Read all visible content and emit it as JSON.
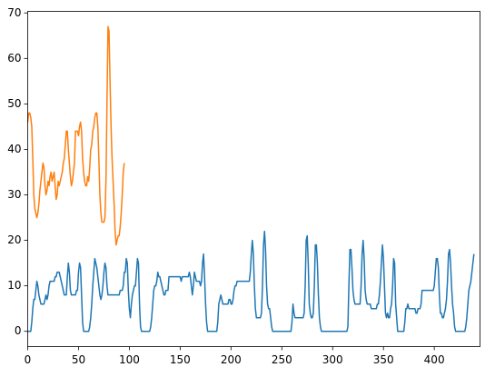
{
  "chart_data": {
    "type": "line",
    "xlim": [
      0,
      445
    ],
    "ylim": [
      -3.35,
      70.35
    ],
    "xticks": [
      0,
      50,
      100,
      150,
      200,
      250,
      300,
      350,
      400
    ],
    "yticks": [
      0,
      10,
      20,
      30,
      40,
      50,
      60,
      70
    ],
    "series": [
      {
        "color": "#1f77b4",
        "values": [
          0,
          0,
          0,
          0,
          2,
          5,
          7,
          7,
          9,
          11,
          10,
          8,
          7,
          6,
          6,
          6,
          6,
          7,
          8,
          7,
          8,
          10,
          11,
          11,
          11,
          11,
          11,
          12,
          12,
          13,
          13,
          13,
          12,
          11,
          10,
          9,
          8,
          8,
          8,
          12,
          15,
          13,
          9,
          8,
          8,
          8,
          8,
          8,
          9,
          9,
          13,
          15,
          14,
          8,
          2,
          0,
          0,
          0,
          0,
          0,
          0,
          1,
          3,
          6,
          10,
          13,
          16,
          15,
          14,
          12,
          10,
          8,
          7,
          8,
          10,
          13,
          15,
          14,
          10,
          8,
          8,
          8,
          8,
          8,
          8,
          8,
          8,
          8,
          8,
          8,
          8,
          9,
          9,
          9,
          10,
          13,
          13,
          16,
          15,
          9,
          5,
          3,
          6,
          8,
          9,
          10,
          10,
          13,
          16,
          15,
          6,
          1,
          0,
          0,
          0,
          0,
          0,
          0,
          0,
          0,
          0,
          1,
          3,
          6,
          9,
          10,
          10,
          11,
          13,
          12,
          12,
          11,
          10,
          9,
          8,
          8,
          9,
          9,
          9,
          12,
          12,
          12,
          12,
          12,
          12,
          12,
          12,
          12,
          12,
          12,
          12,
          11,
          12,
          12,
          12,
          12,
          12,
          12,
          12,
          13,
          12,
          10,
          8,
          10,
          13,
          12,
          11,
          11,
          11,
          11,
          10,
          11,
          15,
          17,
          12,
          6,
          2,
          0,
          0,
          0,
          0,
          0,
          0,
          0,
          0,
          0,
          0,
          2,
          6,
          7,
          8,
          7,
          6,
          6,
          6,
          6,
          6,
          6,
          7,
          7,
          6,
          6,
          7,
          9,
          10,
          10,
          11,
          11,
          11,
          11,
          11,
          11,
          11,
          11,
          11,
          11,
          11,
          11,
          11,
          13,
          17,
          20,
          17,
          10,
          5,
          3,
          3,
          3,
          3,
          3,
          4,
          10,
          19,
          22,
          18,
          10,
          6,
          5,
          5,
          3,
          1,
          0,
          0,
          0,
          0,
          0,
          0,
          0,
          0,
          0,
          0,
          0,
          0,
          0,
          0,
          0,
          0,
          0,
          0,
          0,
          2,
          6,
          4,
          3,
          3,
          3,
          3,
          3,
          3,
          3,
          3,
          3,
          4,
          10,
          20,
          21,
          15,
          6,
          4,
          3,
          3,
          4,
          10,
          19,
          19,
          15,
          8,
          3,
          1,
          0,
          0,
          0,
          0,
          0,
          0,
          0,
          0,
          0,
          0,
          0,
          0,
          0,
          0,
          0,
          0,
          0,
          0,
          0,
          0,
          0,
          0,
          0,
          0,
          0,
          0,
          1,
          10,
          18,
          18,
          14,
          9,
          7,
          6,
          6,
          6,
          6,
          6,
          6,
          10,
          17,
          20,
          16,
          9,
          7,
          6,
          6,
          6,
          6,
          5,
          5,
          5,
          5,
          5,
          5,
          6,
          6,
          8,
          11,
          15,
          19,
          16,
          10,
          4,
          3,
          4,
          3,
          3,
          5,
          6,
          10,
          16,
          15,
          6,
          3,
          0,
          0,
          0,
          0,
          0,
          0,
          0,
          2,
          5,
          5,
          6,
          5,
          5,
          5,
          5,
          5,
          5,
          5,
          4,
          4,
          5,
          5,
          5,
          6,
          9,
          9,
          9,
          9,
          9,
          9,
          9,
          9,
          9,
          9,
          9,
          9,
          10,
          13,
          16,
          16,
          14,
          8,
          4,
          4,
          3,
          3,
          4,
          5,
          7,
          11,
          17,
          18,
          15,
          10,
          6,
          4,
          1,
          0,
          0,
          0,
          0,
          0,
          0,
          0,
          0,
          0,
          0,
          1,
          3,
          6,
          9,
          10,
          11,
          13,
          15,
          17
        ]
      },
      {
        "color": "#ff7f0e",
        "values": [
          46,
          48,
          48,
          47,
          45,
          38,
          30,
          27,
          26,
          25,
          26,
          28,
          31,
          33,
          35,
          37,
          36,
          32,
          30,
          31,
          33,
          32,
          34,
          35,
          33,
          34,
          35,
          32,
          29,
          30,
          33,
          32,
          33,
          34,
          35,
          37,
          38,
          41,
          44,
          44,
          40,
          37,
          34,
          32,
          33,
          35,
          37,
          44,
          44,
          44,
          43,
          45,
          46,
          44,
          38,
          35,
          33,
          32,
          32,
          34,
          33,
          36,
          40,
          41,
          44,
          45,
          47,
          48,
          48,
          45,
          38,
          30,
          26,
          24,
          24,
          24,
          25,
          33,
          50,
          67,
          66,
          55,
          45,
          38,
          33,
          28,
          22,
          19,
          20,
          21,
          21,
          23,
          26,
          30,
          35,
          37
        ]
      }
    ]
  }
}
